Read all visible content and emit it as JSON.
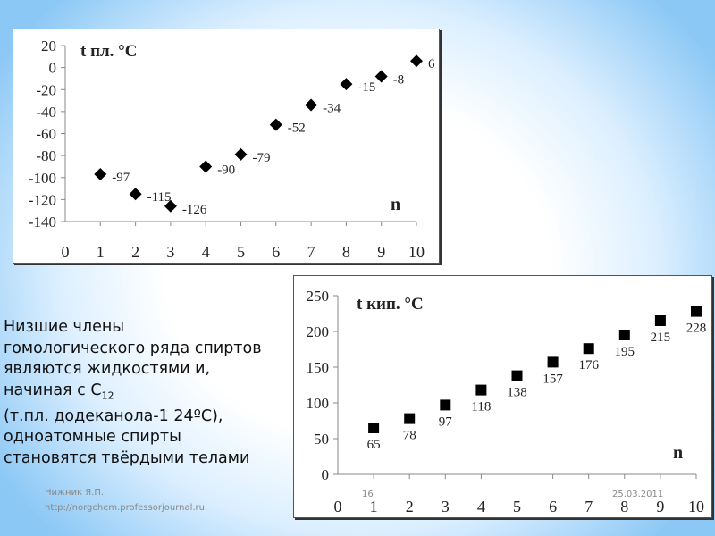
{
  "chart_data": [
    {
      "type": "scatter",
      "title": "t пл. °C",
      "ylabel_parts": {
        "t": "t пл.",
        "deg": "o",
        "unit": "C"
      },
      "xlabel": "n",
      "x": [
        1,
        2,
        3,
        4,
        5,
        6,
        7,
        8,
        9,
        10
      ],
      "y": [
        -97,
        -115,
        -126,
        -90,
        -79,
        -52,
        -34,
        -15,
        -8,
        6
      ],
      "data_labels": [
        "-97",
        "-115",
        "-126",
        "-90",
        "-79",
        "-52",
        "-34",
        "-15",
        "-8",
        "6"
      ],
      "xlim": [
        0,
        10
      ],
      "ylim": [
        -140,
        20
      ],
      "xticks": [
        "0",
        "1",
        "2",
        "3",
        "4",
        "5",
        "6",
        "7",
        "8",
        "9",
        "10"
      ],
      "yticks": [
        "20",
        "0",
        "-20",
        "-40",
        "-60",
        "-80",
        "-100",
        "-120",
        "-140"
      ],
      "marker": "diamond",
      "grid": false
    },
    {
      "type": "scatter",
      "title": "t кип. °C",
      "ylabel_parts": {
        "t": "t кип.",
        "deg": "o",
        "unit": "C"
      },
      "xlabel": "n",
      "x": [
        1,
        2,
        3,
        4,
        5,
        6,
        7,
        8,
        9,
        10
      ],
      "y": [
        65,
        78,
        97,
        118,
        138,
        157,
        176,
        195,
        215,
        228
      ],
      "data_labels": [
        "65",
        "78",
        "97",
        "118",
        "138",
        "157",
        "176",
        "195",
        "215",
        "228"
      ],
      "xlim": [
        0,
        10
      ],
      "ylim": [
        0,
        250
      ],
      "xticks": [
        "0",
        "1",
        "2",
        "3",
        "4",
        "5",
        "6",
        "7",
        "8",
        "9",
        "10"
      ],
      "yticks": [
        "250",
        "200",
        "150",
        "100",
        "50",
        "0"
      ],
      "marker": "square",
      "grid": false
    }
  ],
  "text": {
    "line1": "Низшие члены",
    "line2": "гомологического ряда спиртов",
    "line3": "являются жидкостями и,",
    "line4a": "начиная с С",
    "line4sub": "12",
    "line5": "(т.пл. додеканола-1 24ºС),",
    "line6": "одноатомные спирты",
    "line7": "становятся твёрдыми телами"
  },
  "footer": {
    "author": "Нижник Я.П.",
    "url": "http://norgchem.professorjournal.ru",
    "slide_number": "16",
    "date": "25.03.2011"
  }
}
